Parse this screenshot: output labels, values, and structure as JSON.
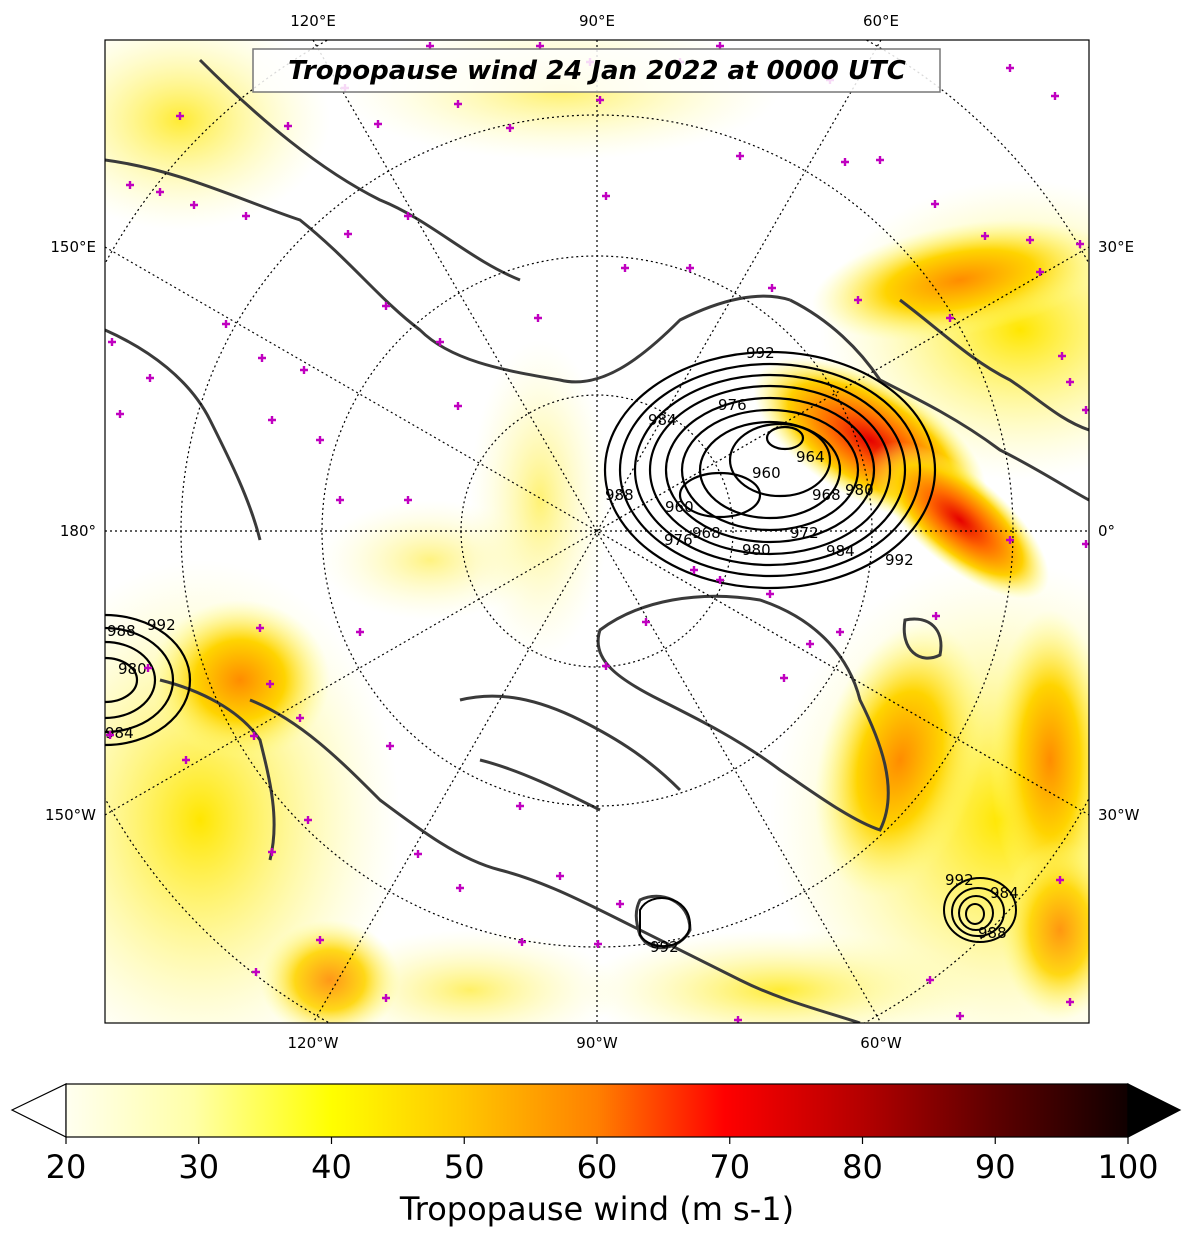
{
  "map": {
    "title": "Tropopause wind 24 Jan 2022 at 0000 UTC",
    "projection": "north-polar-stereographic",
    "top_labels": [
      "120°E",
      "90°E",
      "60°E"
    ],
    "bottom_labels": [
      "120°W",
      "90°W",
      "60°W"
    ],
    "left_labels": [
      "150°E",
      "180°",
      "150°W"
    ],
    "right_labels": [
      "30°E",
      "0°",
      "30°W"
    ],
    "colors": {
      "coast": "#3a3a3a",
      "contour": "#000000",
      "marker": "#c000c0",
      "grid": "#000000"
    },
    "contours": {
      "variable": "mean sea level pressure",
      "labels": [
        "992",
        "988",
        "984",
        "980",
        "976",
        "972",
        "968",
        "964",
        "960"
      ]
    }
  },
  "colorbar": {
    "label": "Tropopause wind (m s-1)",
    "ticks": [
      "20",
      "30",
      "40",
      "50",
      "60",
      "70",
      "80",
      "90",
      "100"
    ],
    "min": 20,
    "max": 100,
    "extend": "both",
    "colormap": "hot_r"
  },
  "chart_data": {
    "type": "heatmap",
    "title": "Tropopause wind 24 Jan 2022 at 0000 UTC",
    "colorbar_label": "Tropopause wind (m s-1)",
    "vmin": 20,
    "vmax": 100,
    "contour_levels": [
      960,
      964,
      968,
      972,
      976,
      980,
      984,
      988,
      992
    ]
  }
}
